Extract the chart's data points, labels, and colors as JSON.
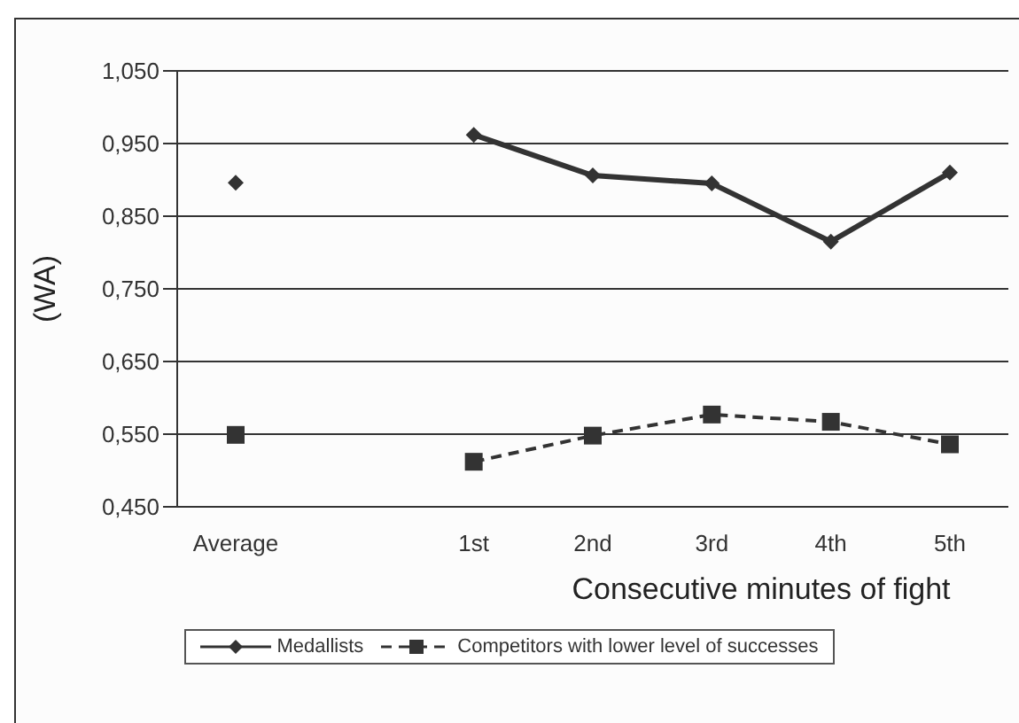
{
  "chart_data": {
    "type": "line",
    "xlabel": "Consecutive minutes of fight",
    "ylabel": "(WA)",
    "categories": [
      "Average",
      null,
      "1st",
      "2nd",
      "3rd",
      "4th",
      "5th"
    ],
    "series": [
      {
        "name": "Medallists",
        "color": "#333333",
        "marker": "diamond",
        "line_style": "solid",
        "values": [
          0.896,
          null,
          0.962,
          0.906,
          0.895,
          0.815,
          0.91
        ]
      },
      {
        "name": "Competitors with lower level of successes",
        "color": "#333333",
        "marker": "square",
        "line_style": "dashed",
        "values": [
          0.549,
          null,
          0.512,
          0.548,
          0.577,
          0.567,
          0.536
        ]
      }
    ],
    "ylim": [
      0.45,
      1.05
    ],
    "yticks": [
      {
        "value": 0.45,
        "label": "0,450"
      },
      {
        "value": 0.55,
        "label": "0,550"
      },
      {
        "value": 0.65,
        "label": "0,650"
      },
      {
        "value": 0.75,
        "label": "0,750"
      },
      {
        "value": 0.85,
        "label": "0,850"
      },
      {
        "value": 0.95,
        "label": "0,950"
      },
      {
        "value": 1.05,
        "label": "1,050"
      }
    ],
    "grid": "y",
    "legend": "bottom"
  }
}
